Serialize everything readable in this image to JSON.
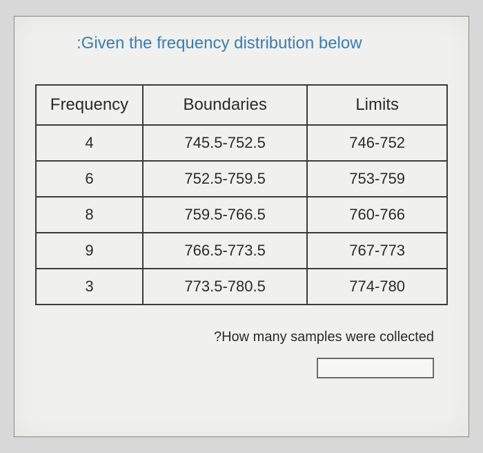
{
  "title": ":Given the frequency distribution below",
  "table": {
    "columns": [
      "Frequency",
      "Boundaries",
      "Limits"
    ],
    "rows": [
      [
        "4",
        "745.5-752.5",
        "746-752"
      ],
      [
        "6",
        "752.5-759.5",
        "753-759"
      ],
      [
        "8",
        "759.5-766.5",
        "760-766"
      ],
      [
        "9",
        "766.5-773.5",
        "767-773"
      ],
      [
        "3",
        "773.5-780.5",
        "774-780"
      ]
    ]
  },
  "question": "?How many samples were collected",
  "answer_value": ""
}
